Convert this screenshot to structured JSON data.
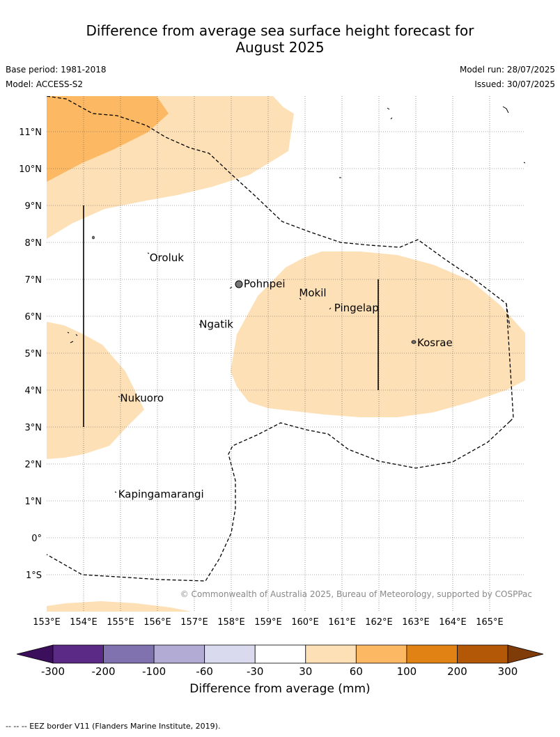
{
  "title_line1": "Difference from average sea surface height forecast for",
  "title_line2": "August 2025",
  "base_period": "Base period: 1981-2018",
  "model": "Model: ACCESS-S2",
  "model_run": "Model run: 28/07/2025",
  "issued": "Issued: 30/07/2025",
  "copyright": "© Commonwealth of Australia 2025, Bureau of Meteorology, supported by COSPPac",
  "lat_labels": [
    "11°N",
    "10°N",
    "9°N",
    "8°N",
    "7°N",
    "6°N",
    "5°N",
    "4°N",
    "3°N",
    "2°N",
    "1°N",
    "0°",
    "1°S"
  ],
  "lon_labels": [
    "153°E",
    "154°E",
    "155°E",
    "156°E",
    "157°E",
    "158°E",
    "159°E",
    "160°E",
    "161°E",
    "162°E",
    "163°E",
    "164°E",
    "165°E"
  ],
  "places": [
    {
      "name": "Oroluk",
      "lon": 155.75,
      "lat": 7.6
    },
    {
      "name": "Pohnpei",
      "lon": 158.3,
      "lat": 6.9
    },
    {
      "name": "Mokil",
      "lon": 159.8,
      "lat": 6.65
    },
    {
      "name": "Pingelap",
      "lon": 160.75,
      "lat": 6.25
    },
    {
      "name": "Ngatik",
      "lon": 157.1,
      "lat": 5.8
    },
    {
      "name": "Kosrae",
      "lon": 163.0,
      "lat": 5.3
    },
    {
      "name": "Nukuoro",
      "lon": 154.95,
      "lat": 3.8
    },
    {
      "name": "Kapingamarangi",
      "lon": 154.9,
      "lat": 1.2
    }
  ],
  "colorbar": {
    "tick_labels": [
      "-300",
      "-200",
      "-100",
      "-60",
      "-30",
      "30",
      "60",
      "100",
      "200",
      "300"
    ],
    "colors": [
      "#5b2a86",
      "#7f72ae",
      "#b2abd3",
      "#d9daee",
      "#ffffff",
      "#fee0b6",
      "#fdb863",
      "#e08214",
      "#b35806"
    ],
    "under_color": "#3b0f5c",
    "over_color": "#7f3b08",
    "label": "Difference from average (mm)"
  },
  "footnote": "--  --  -- EEZ border V11 (Flanders Marine Institute, 2019)."
}
